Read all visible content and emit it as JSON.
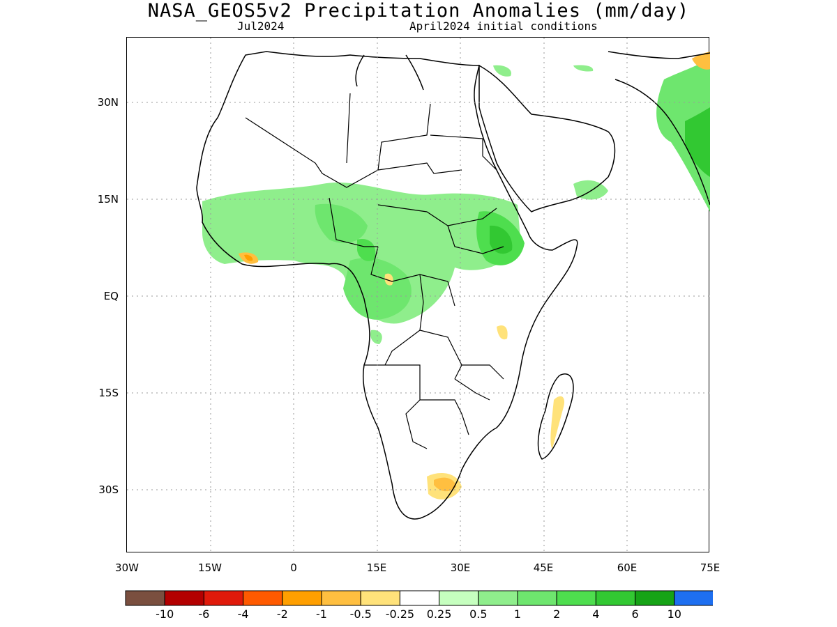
{
  "title": "NASA_GEOS5v2 Precipitation Anomalies (mm/day)",
  "subtitle_left": "Jul2024",
  "subtitle_right": "April2024 initial conditions",
  "lat_labels": [
    "30N",
    "15N",
    "EQ",
    "15S",
    "30S"
  ],
  "lon_labels": [
    "30W",
    "15W",
    "0",
    "15E",
    "30E",
    "45E",
    "60E",
    "75E"
  ],
  "colorbar": {
    "colors": [
      "#7a4f3f",
      "#b30000",
      "#e01a0a",
      "#ff5a00",
      "#ff9f00",
      "#ffbf40",
      "#ffe27a",
      "#ffffff",
      "#c6ffbf",
      "#8fee8c",
      "#6ee66e",
      "#4ede4e",
      "#32c832",
      "#16a316",
      "#1e6ff0"
    ],
    "labels": [
      "-10",
      "-6",
      "-4",
      "-2",
      "-1",
      "-0.5",
      "-0.25",
      "0.25",
      "0.5",
      "1",
      "2",
      "4",
      "6",
      "10"
    ]
  },
  "colors": {
    "land_outline": "#000000",
    "grid": "#9a9a9a"
  }
}
